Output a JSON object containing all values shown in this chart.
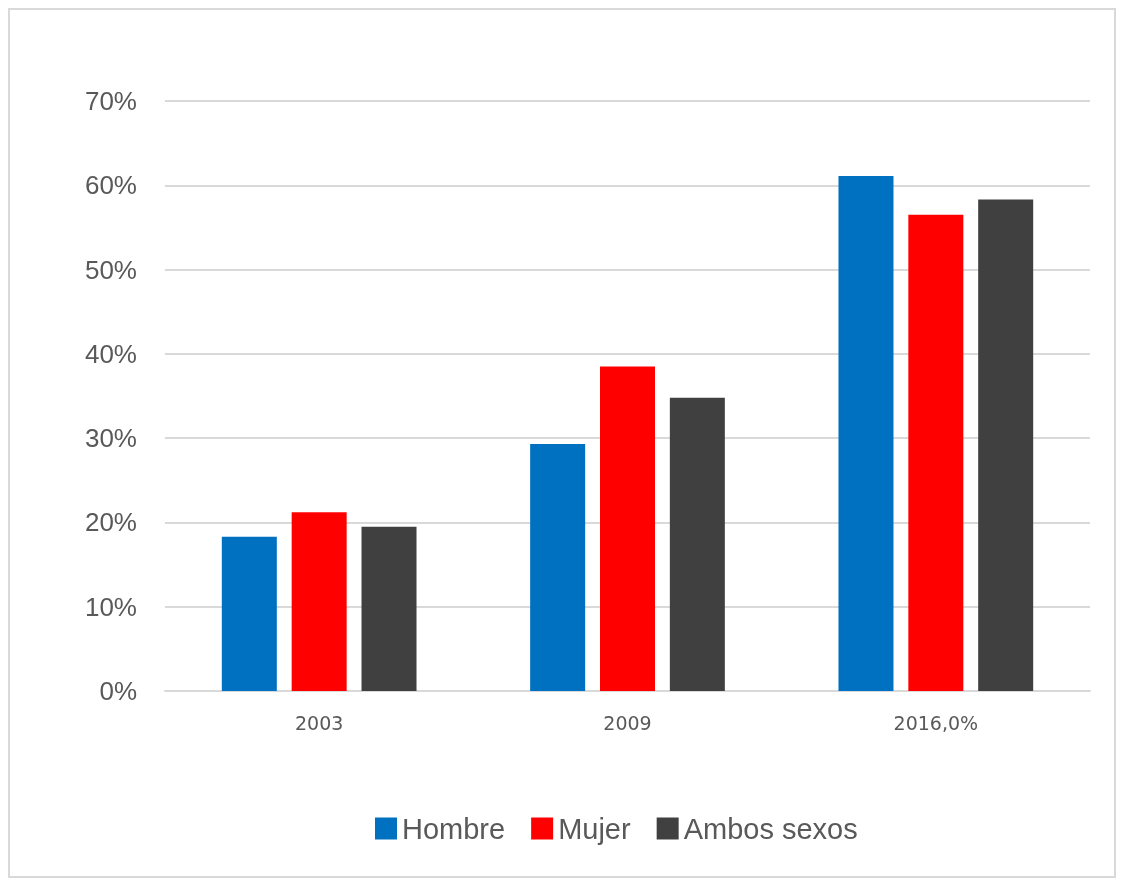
{
  "chart_data": {
    "type": "bar",
    "categories": [
      "2003",
      "2009",
      "2016,0%"
    ],
    "series": [
      {
        "name": "Hombre",
        "color": "#0070c0",
        "values": [
          18.3,
          29.3,
          61.1
        ]
      },
      {
        "name": "Mujer",
        "color": "#ff0000",
        "values": [
          21.2,
          38.5,
          56.5
        ]
      },
      {
        "name": "Ambos sexos",
        "color": "#404040",
        "values": [
          19.5,
          34.8,
          58.3
        ]
      }
    ],
    "ylim": [
      0,
      70
    ],
    "yticks": [
      {
        "value": 0,
        "label": "0%"
      },
      {
        "value": 10,
        "label": "10%"
      },
      {
        "value": 20,
        "label": "20%"
      },
      {
        "value": 30,
        "label": "30%"
      },
      {
        "value": 40,
        "label": "40%"
      },
      {
        "value": 50,
        "label": "50%"
      },
      {
        "value": 60,
        "label": "60%"
      },
      {
        "value": 70,
        "label": "70%"
      }
    ],
    "grid": "y",
    "legend": "bottom"
  }
}
